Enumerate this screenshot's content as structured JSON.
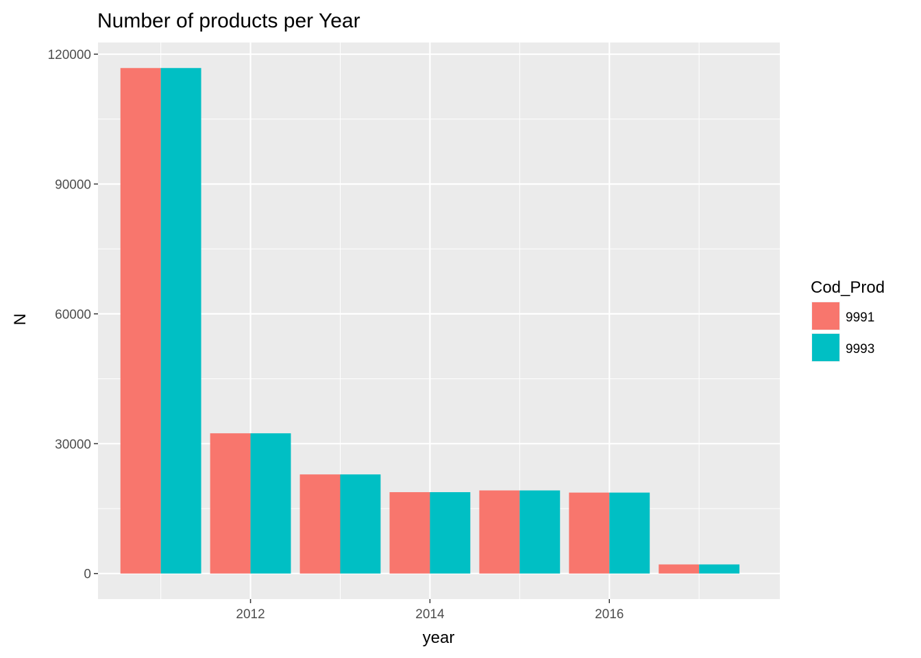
{
  "chart_data": {
    "type": "bar",
    "title": "Number of products per Year",
    "xlabel": "year",
    "ylabel": "N",
    "x": [
      2011,
      2012,
      2013,
      2014,
      2015,
      2016,
      2017
    ],
    "series": [
      {
        "name": "9991",
        "color": "#F8766D",
        "values": [
          116800,
          32400,
          22900,
          18800,
          19200,
          18700,
          2100
        ]
      },
      {
        "name": "9993",
        "color": "#00BFC4",
        "values": [
          116800,
          32400,
          22900,
          18800,
          19200,
          18700,
          2100
        ]
      }
    ],
    "x_ticks": [
      "2012",
      "2014",
      "2016"
    ],
    "x_tick_values": [
      2012,
      2014,
      2016
    ],
    "y_ticks": [
      "0",
      "30000",
      "60000",
      "90000",
      "120000"
    ],
    "y_tick_values": [
      0,
      30000,
      60000,
      90000,
      120000
    ],
    "xlim": [
      2010.3,
      2017.9
    ],
    "ylim": [
      -5900,
      122700
    ],
    "grid": true,
    "panel_background": "#EBEBEB",
    "legend": {
      "title": "Cod_Prod",
      "position": "right"
    }
  }
}
